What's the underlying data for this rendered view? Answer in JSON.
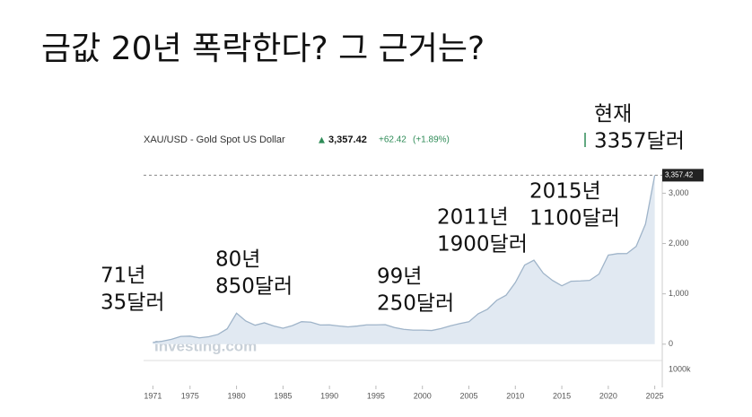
{
  "title": "금값 20년 폭락한다? 그 근거는?",
  "chart_data": {
    "type": "area",
    "header": {
      "symbol": "XAU/USD - Gold Spot US Dollar",
      "price": "3,357.42",
      "change": "+62.42",
      "change_pct": "(+1.89%)"
    },
    "x": [
      1971,
      1972,
      1973,
      1974,
      1975,
      1976,
      1977,
      1978,
      1979,
      1980,
      1981,
      1982,
      1983,
      1984,
      1985,
      1986,
      1987,
      1988,
      1989,
      1990,
      1991,
      1992,
      1993,
      1994,
      1995,
      1996,
      1997,
      1998,
      1999,
      2000,
      2001,
      2002,
      2003,
      2004,
      2005,
      2006,
      2007,
      2008,
      2009,
      2010,
      2011,
      2012,
      2013,
      2014,
      2015,
      2016,
      2017,
      2018,
      2019,
      2020,
      2021,
      2022,
      2023,
      2024,
      2025
    ],
    "values": [
      35,
      58,
      97,
      154,
      160,
      125,
      148,
      193,
      306,
      615,
      460,
      376,
      424,
      361,
      317,
      368,
      447,
      437,
      381,
      383,
      362,
      344,
      360,
      384,
      384,
      388,
      331,
      294,
      279,
      279,
      271,
      310,
      363,
      409,
      445,
      604,
      695,
      872,
      972,
      1225,
      1572,
      1669,
      1411,
      1266,
      1160,
      1251,
      1257,
      1268,
      1393,
      1770,
      1799,
      1800,
      1943,
      2386,
      3357
    ],
    "color": "#9fb4c9",
    "fill": "#e1e9f2",
    "xlim": [
      1970,
      2026
    ],
    "xticks": [
      1971,
      1975,
      1980,
      1985,
      1990,
      1995,
      2000,
      2005,
      2010,
      2015,
      2020,
      2025
    ],
    "ylim": [
      -200,
      3400
    ],
    "yticks": [
      {
        "value": 3000,
        "label": "3,000"
      },
      {
        "value": 2000,
        "label": "2,000"
      },
      {
        "value": 1000,
        "label": "1,000"
      },
      0
    ],
    "last_label": "3,357.42",
    "last_value": 3357.42,
    "volume_label": "1000k",
    "watermark": "Investing.com",
    "annotations": [
      [
        "71년",
        "35달러"
      ],
      [
        "80년",
        "850달러"
      ],
      [
        "99년",
        "250달러"
      ],
      [
        "2011년",
        "1900달러"
      ],
      [
        "2015년",
        "1100달러"
      ],
      [
        "현재",
        "3357달러"
      ]
    ]
  }
}
